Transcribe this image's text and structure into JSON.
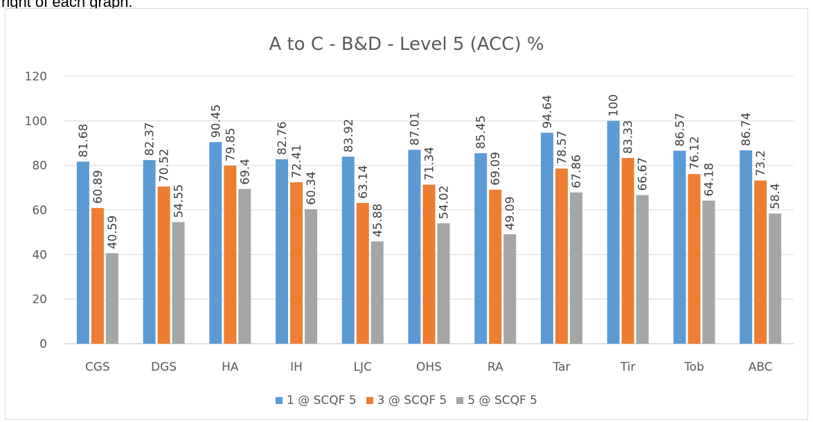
{
  "caption_fragment": "right of each graph.",
  "chart_data": {
    "type": "bar",
    "title": "A to C - B&D - Level 5 (ACC) %",
    "xlabel": "",
    "ylabel": "",
    "ylim": [
      0,
      120
    ],
    "yticks": [
      0,
      20,
      40,
      60,
      80,
      100,
      120
    ],
    "grid": true,
    "legend_position": "bottom",
    "categories": [
      "CGS",
      "DGS",
      "HA",
      "IH",
      "LJC",
      "OHS",
      "RA",
      "Tar",
      "Tir",
      "Tob",
      "ABC"
    ],
    "series": [
      {
        "name": "1 @ SCQF 5",
        "color": "#5b9bd5",
        "values": [
          81.68,
          82.37,
          90.45,
          82.76,
          83.92,
          87.01,
          85.45,
          94.64,
          100,
          86.57,
          86.74
        ]
      },
      {
        "name": "3 @ SCQF 5",
        "color": "#ed7d31",
        "values": [
          60.89,
          70.52,
          79.85,
          72.41,
          63.14,
          71.34,
          69.09,
          78.57,
          83.33,
          76.12,
          73.2
        ]
      },
      {
        "name": "5 @ SCQF 5",
        "color": "#a5a5a5",
        "values": [
          40.59,
          54.55,
          69.4,
          60.34,
          45.88,
          54.02,
          49.09,
          67.86,
          66.67,
          64.18,
          58.4
        ]
      }
    ]
  }
}
